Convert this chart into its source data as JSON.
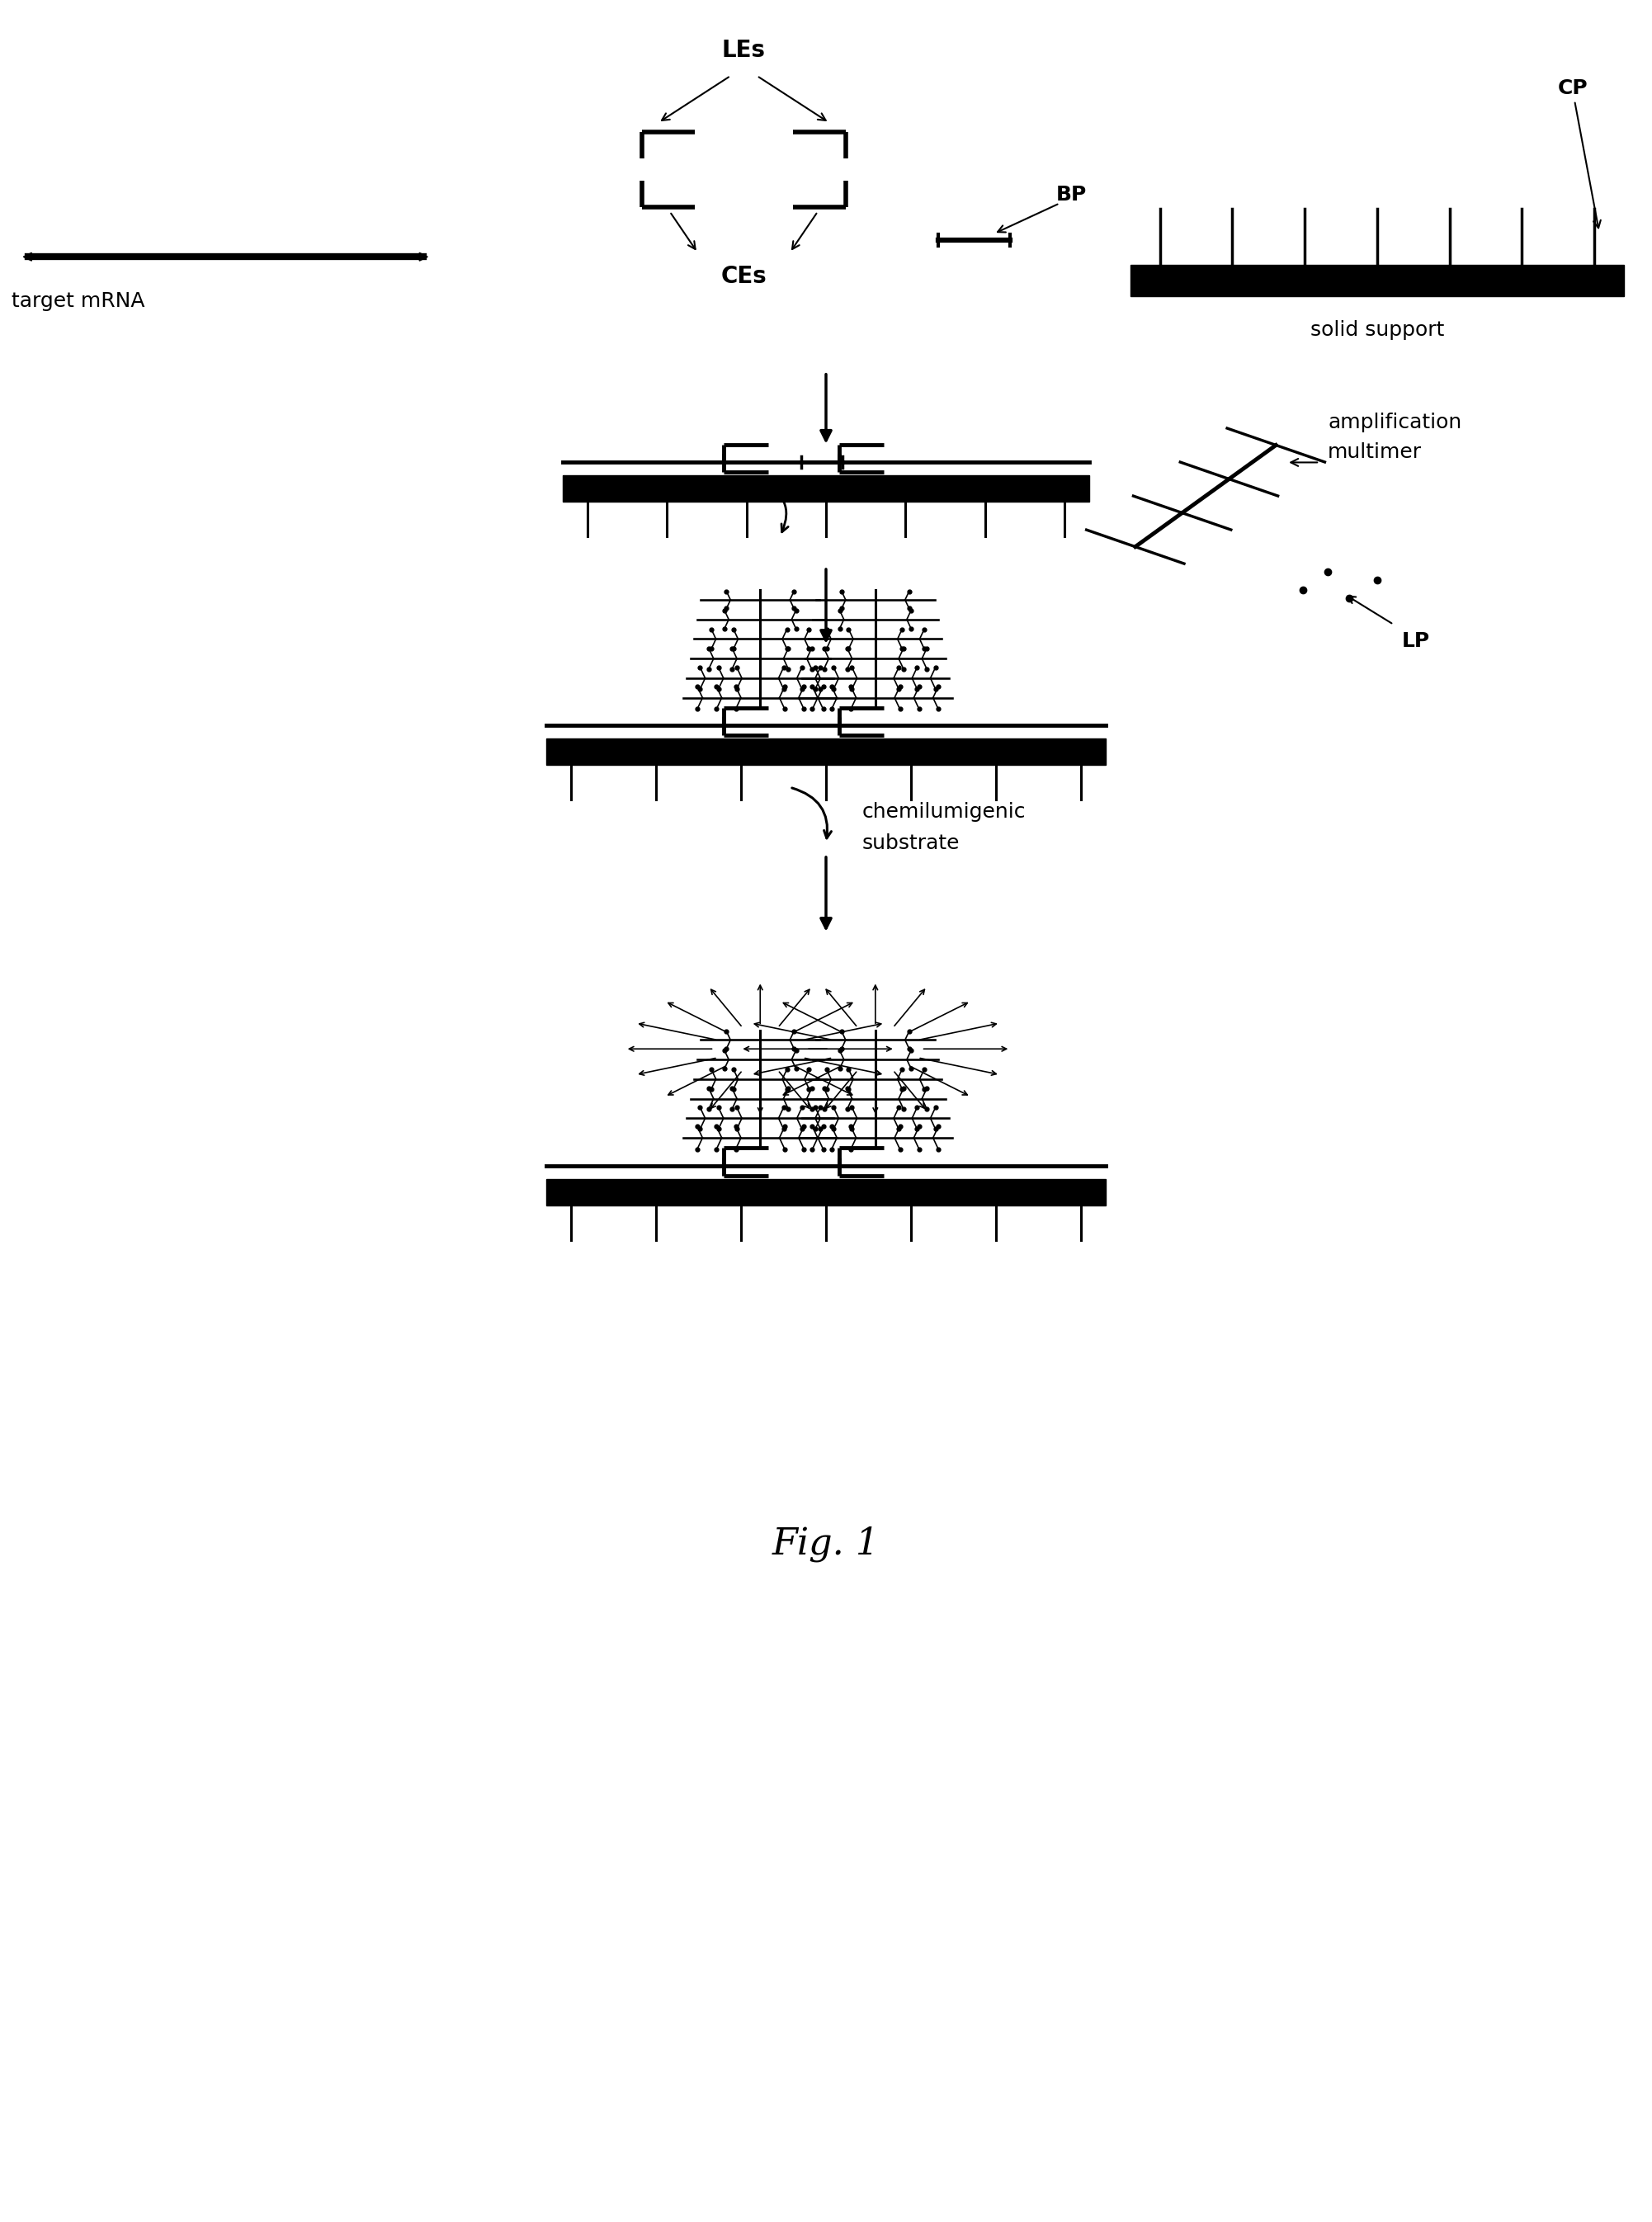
{
  "fig_width": 20.02,
  "fig_height": 26.93,
  "background": "#ffffff",
  "title": "Fig. 1",
  "title_fontsize": 32,
  "label_fontsize": 18,
  "coords": {
    "xlim": [
      0,
      10
    ],
    "ylim": [
      0,
      26.93
    ]
  }
}
